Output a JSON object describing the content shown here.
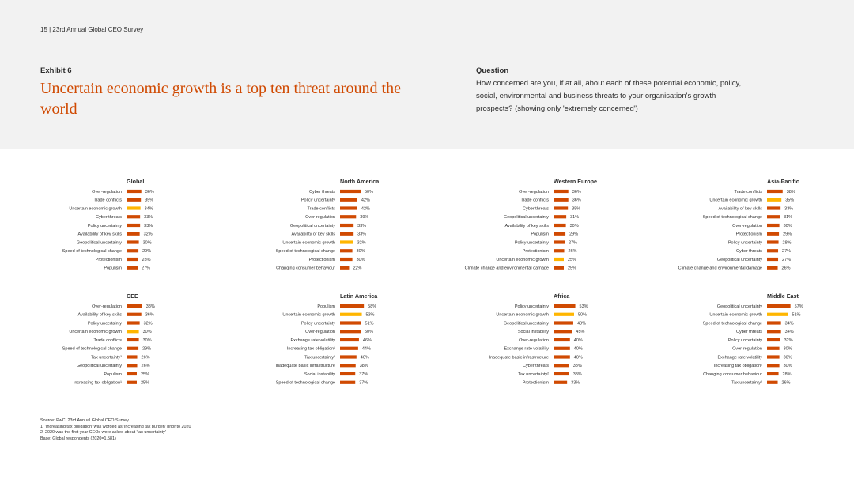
{
  "page_header": "15 | 23rd Annual Global CEO Survey",
  "exhibit_label": "Exhibit 6",
  "headline": "Uncertain economic growth is a top ten threat around the world",
  "question_label": "Question",
  "question_text": "How concerned are you, if at all, about each of these potential economic, policy, social, environmental and business threats to your organisation's growth prospects? (showing only 'extremely concerned')",
  "colors": {
    "bar": "#d04a02",
    "highlight": "#ffb600",
    "band": "#f2f2f2",
    "accent_text": "#d04a02"
  },
  "chart_data": [
    {
      "type": "bar",
      "title": "Global",
      "categories": [
        "Over-regulation",
        "Trade conflicts",
        "Uncertain economic growth",
        "Cyber threats",
        "Policy uncertainty",
        "Availability of key skills",
        "Geopolitical uncertainty",
        "Speed of technological change",
        "Protectionism",
        "Populism"
      ],
      "values": [
        36,
        35,
        34,
        33,
        33,
        32,
        30,
        29,
        28,
        27
      ],
      "labels": [
        "36%",
        "35%",
        "34%",
        "33%",
        "33%",
        "32%",
        "30%",
        "29%",
        "28%",
        "27%"
      ],
      "highlight": 2
    },
    {
      "type": "bar",
      "title": "North America",
      "categories": [
        "Cyber threats",
        "Policy uncertainty",
        "Trade conflicts",
        "Over-regulation",
        "Geopolitical uncertainty",
        "Availability of key skills",
        "Uncertain economic growth",
        "Speed of technological change",
        "Protectionism",
        "Changing consumer behaviour"
      ],
      "values": [
        50,
        42,
        42,
        39,
        33,
        33,
        32,
        30,
        30,
        22
      ],
      "labels": [
        "50%",
        "42%",
        "42%",
        "39%",
        "33%",
        "33%",
        "32%",
        "30%",
        "30%",
        "22%"
      ],
      "highlight": 6
    },
    {
      "type": "bar",
      "title": "Western Europe",
      "categories": [
        "Over-regulation",
        "Trade conflicts",
        "Cyber threats",
        "Geopolitical uncertainty",
        "Availability of key skills",
        "Populism",
        "Policy uncertainty",
        "Protectionism",
        "Uncertain economic growth",
        "Climate change and environmental damage"
      ],
      "values": [
        36,
        36,
        35,
        31,
        30,
        29,
        27,
        26,
        25,
        25
      ],
      "labels": [
        "36%",
        "36%",
        "35%",
        "31%",
        "30%",
        "29%",
        "27%",
        "26%",
        "25%",
        "25%"
      ],
      "highlight": 8
    },
    {
      "type": "bar",
      "title": "Asia-Pacific",
      "categories": [
        "Trade conflicts",
        "Uncertain economic growth",
        "Availability of key skills",
        "Speed of technological change",
        "Over-regulation",
        "Protectionism",
        "Policy uncertainty",
        "Cyber threats",
        "Geopolitical uncertainty",
        "Climate change and environmental damage"
      ],
      "values": [
        38,
        35,
        33,
        31,
        30,
        29,
        28,
        27,
        27,
        26
      ],
      "labels": [
        "38%",
        "35%",
        "33%",
        "31%",
        "30%",
        "29%",
        "28%",
        "27%",
        "27%",
        "26%"
      ],
      "highlight": 1
    },
    {
      "type": "bar",
      "title": "CEE",
      "categories": [
        "Over-regulation",
        "Availability of key skills",
        "Policy uncertainty",
        "Uncertain economic growth",
        "Trade conflicts",
        "Speed of technological change",
        "Tax uncertainty²",
        "Geopolitical uncertainty",
        "Populism",
        "Increasing tax obligation¹"
      ],
      "values": [
        38,
        36,
        32,
        30,
        30,
        29,
        26,
        26,
        25,
        25
      ],
      "labels": [
        "38%",
        "36%",
        "32%",
        "30%",
        "30%",
        "29%",
        "26%",
        "26%",
        "25%",
        "25%"
      ],
      "highlight": 3
    },
    {
      "type": "bar",
      "title": "Latin America",
      "categories": [
        "Populism",
        "Uncertain economic growth",
        "Policy uncertainty",
        "Over-regulation",
        "Exchange rate volatility",
        "Increasing tax obligation¹",
        "Tax uncertainty²",
        "Inadequate basic infrastructure",
        "Social instability",
        "Speed of technological change"
      ],
      "values": [
        58,
        53,
        51,
        50,
        46,
        44,
        40,
        38,
        37,
        37
      ],
      "labels": [
        "58%",
        "53%",
        "51%",
        "50%",
        "46%",
        "44%",
        "40%",
        "38%",
        "37%",
        "37%"
      ],
      "highlight": 1
    },
    {
      "type": "bar",
      "title": "Africa",
      "categories": [
        "Policy uncertainty",
        "Uncertain economic growth",
        "Geopolitical uncertainty",
        "Social instability",
        "Over-regulation",
        "Exchange rate volatility",
        "Inadequate basic infrastructure",
        "Cyber threats",
        "Tax uncertainty²",
        "Protectionism"
      ],
      "values": [
        53,
        50,
        48,
        45,
        40,
        40,
        40,
        38,
        38,
        33
      ],
      "labels": [
        "53%",
        "50%",
        "48%",
        "45%",
        "40%",
        "40%",
        "40%",
        "38%",
        "38%",
        "33%"
      ],
      "highlight": 1
    },
    {
      "type": "bar",
      "title": "Middle East",
      "categories": [
        "Geopolitical uncertainty",
        "Uncertain economic growth",
        "Speed of technological change",
        "Cyber threats",
        "Policy uncertainty",
        "Over-regulation",
        "Exchange rate volatility",
        "Increasing tax obligation¹",
        "Changing consumer behaviour",
        "Tax uncertainty²"
      ],
      "values": [
        57,
        51,
        34,
        34,
        32,
        30,
        30,
        30,
        28,
        26
      ],
      "labels": [
        "57%",
        "51%",
        "34%",
        "34%",
        "32%",
        "30%",
        "30%",
        "30%",
        "28%",
        "26%"
      ],
      "highlight": 1
    }
  ],
  "source_notes": [
    "Source: PwC, 23rd Annual Global CEO Survey",
    "1. 'Increasing tax obligation' was worded as 'increasing tax burden' prior to 2020",
    "2. 2020 was the first year CEOs were asked about 'tax uncertainty'",
    "Base: Global respondents (2020=1,581)"
  ]
}
